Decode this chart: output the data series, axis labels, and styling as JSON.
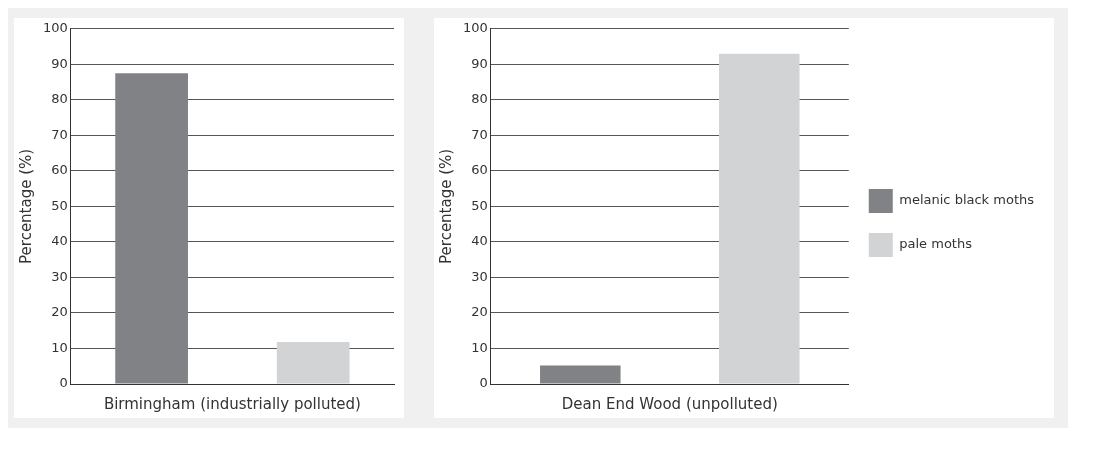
{
  "chart_data": [
    {
      "type": "bar",
      "xlabel": "Birmingham (industrially polluted)",
      "ylabel": "Percentage (%)",
      "categories": [
        null,
        null
      ],
      "series": [
        {
          "color": "#808285",
          "values": [
            87.5,
            null
          ]
        },
        {
          "color": "#d1d3d4",
          "values": [
            null,
            11.8
          ]
        }
      ],
      "ylim": [
        0,
        100
      ],
      "yticks": [
        0,
        10,
        20,
        30,
        40,
        50,
        60,
        70,
        80,
        90,
        100
      ],
      "grid": "y",
      "legend": false,
      "tick_labels": "y"
    },
    {
      "type": "bar",
      "xlabel": "Dean End Wood (unpolluted)",
      "ylabel": "Percentage (%)",
      "categories": [
        null,
        null
      ],
      "series": [
        {
          "name": "melanic black moths",
          "color": "#808285",
          "values": [
            5.2,
            null
          ]
        },
        {
          "name": "pale moths",
          "color": "#d1d3d4",
          "values": [
            null,
            93
          ]
        }
      ],
      "ylim": [
        0,
        100
      ],
      "yticks": [
        0,
        10,
        20,
        30,
        40,
        50,
        60,
        70,
        80,
        90,
        100
      ],
      "grid": "y",
      "legend": "right",
      "tick_labels": "y"
    }
  ]
}
